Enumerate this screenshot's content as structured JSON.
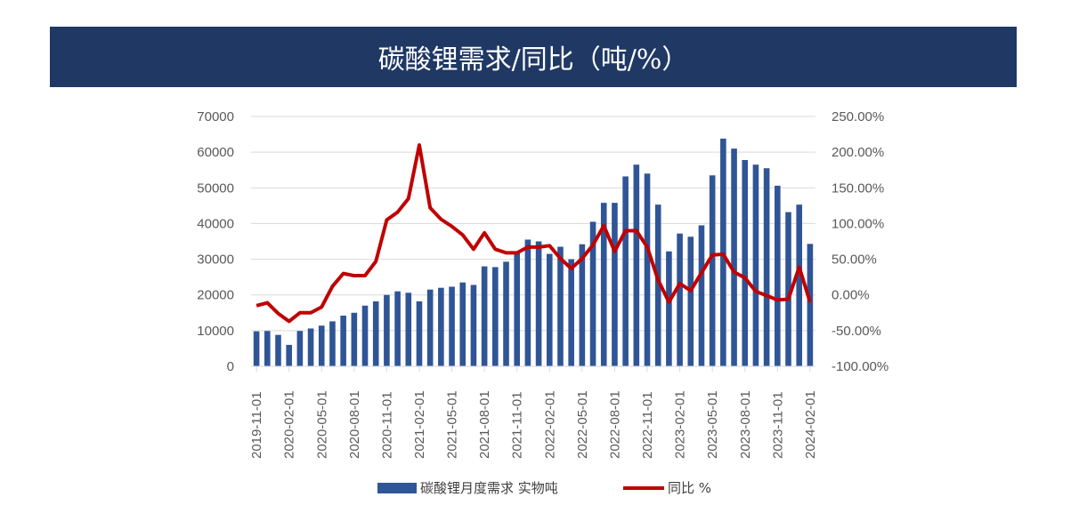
{
  "chart_data": {
    "type": "bar+line",
    "title": "碳酸锂需求/同比（吨/%）",
    "colors": {
      "bar": "#2f5597",
      "line": "#c00000",
      "title_bg": "#1f3864"
    },
    "grid": true,
    "legend_position": "bottom",
    "categories": [
      "2019-11-01",
      "2019-12-01",
      "2020-01-01",
      "2020-02-01",
      "2020-03-01",
      "2020-04-01",
      "2020-05-01",
      "2020-06-01",
      "2020-07-01",
      "2020-08-01",
      "2020-09-01",
      "2020-10-01",
      "2020-11-01",
      "2020-12-01",
      "2021-01-01",
      "2021-02-01",
      "2021-03-01",
      "2021-04-01",
      "2021-05-01",
      "2021-06-01",
      "2021-07-01",
      "2021-08-01",
      "2021-09-01",
      "2021-10-01",
      "2021-11-01",
      "2021-12-01",
      "2022-01-01",
      "2022-02-01",
      "2022-03-01",
      "2022-04-01",
      "2022-05-01",
      "2022-06-01",
      "2022-07-01",
      "2022-08-01",
      "2022-09-01",
      "2022-10-01",
      "2022-11-01",
      "2022-12-01",
      "2023-01-01",
      "2023-02-01",
      "2023-03-01",
      "2023-04-01",
      "2023-05-01",
      "2023-06-01",
      "2023-07-01",
      "2023-08-01",
      "2023-09-01",
      "2023-10-01",
      "2023-11-01",
      "2023-12-01",
      "2024-01-01",
      "2024-02-01"
    ],
    "series": [
      {
        "name": "碳酸锂月度需求 实物吨",
        "type": "bar",
        "axis": "left",
        "values": [
          9800,
          9900,
          8800,
          6000,
          9900,
          10600,
          11400,
          12600,
          14200,
          15000,
          17000,
          18200,
          20000,
          21000,
          20600,
          18200,
          21500,
          22000,
          22300,
          23500,
          22800,
          28000,
          27800,
          29300,
          32000,
          35500,
          35000,
          31500,
          33500,
          30000,
          34200,
          40500,
          45800,
          45800,
          53200,
          56500,
          54000,
          45300,
          32200,
          37200,
          36300,
          39500,
          53500,
          63800,
          61000,
          57800,
          56500,
          55500,
          50600,
          43200,
          45300,
          34300
        ]
      },
      {
        "name": "同比 %",
        "type": "line",
        "axis": "right",
        "values": [
          -15,
          -11,
          -26,
          -37,
          -25,
          -25,
          -17,
          12,
          30,
          27,
          27,
          47,
          105,
          116,
          135,
          210,
          122,
          106,
          96,
          84,
          64,
          87,
          64,
          59,
          59,
          67,
          67,
          69,
          51,
          37,
          51,
          70,
          97,
          61,
          90,
          90,
          67,
          21,
          -10,
          16,
          6,
          31,
          56,
          57,
          32,
          24,
          5,
          -1,
          -7,
          -6,
          39,
          -10
        ]
      }
    ],
    "left_axis": {
      "ylim": [
        0,
        70000
      ],
      "ticks": [
        "0",
        "10000",
        "20000",
        "30000",
        "40000",
        "50000",
        "60000",
        "70000"
      ]
    },
    "right_axis": {
      "ylim": [
        -100,
        250
      ],
      "ticks": [
        "-100.00%",
        "-50.00%",
        "0.00%",
        "50.00%",
        "100.00%",
        "150.00%",
        "200.00%",
        "250.00%"
      ]
    }
  }
}
